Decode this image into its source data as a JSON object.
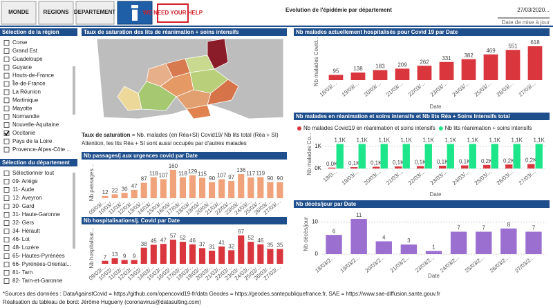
{
  "header": {
    "buttons": [
      "MONDE",
      "REGIONS",
      "DEPARTEMENT",
      "WE NEED YOUR HELP"
    ],
    "title": "Evolution de l'épidémie par département",
    "date": "27/03/2020...",
    "date_caption": "Date de mise à jour"
  },
  "region_selection": {
    "title": "Sélection de la région",
    "selected": "Occitanie",
    "items": [
      "Corse",
      "Grand Est",
      "Guadeloupe",
      "Guyane",
      "Hauts-de-France",
      "Île-de-France",
      "La Réunion",
      "Martinique",
      "Mayotte",
      "Normandie",
      "Nouvelle-Aquitaine",
      "Occitanie",
      "Pays de la Loire",
      "Provence-Alpes-Côte ..."
    ]
  },
  "department_selection": {
    "title": "Sélection du département",
    "selected": "",
    "items": [
      "Sélectionner tout",
      "09- Ariège",
      "11- Aude",
      "12- Aveyron",
      "30- Gard",
      "31- Haute-Garonne",
      "32- Gers",
      "34- Hérault",
      "46- Lot",
      "48- Lozère",
      "65- Hautes-Pyrénées",
      "66- Pyrénées-Oriental...",
      "81- Tarn",
      "82- Tarn-et-Garonne"
    ]
  },
  "map": {
    "title": "Taux de saturation des lits de réanimation + soins intensifs",
    "caption_bold": "Taux de saturation",
    "caption": " = Nb. malades (en Réa+SI) Covid19/ Nb lits total (Réa + SI)",
    "note": "Attention, les lits Réa + SI sont aussi occupés par d'autres malades"
  },
  "chart_data": [
    {
      "type": "bar",
      "title": "Nb malades actuellement hospitalisés pour Covid 19 par Date",
      "y_label": "Nb malades Covid...",
      "x_label": "Date",
      "categories": [
        "18/03/...",
        "19/03/...",
        "20/03/...",
        "21/03/...",
        "22/03/...",
        "23/03/...",
        "24/03/...",
        "25/03/...",
        "26/03/...",
        "27/03/..."
      ],
      "values": [
        95,
        138,
        183,
        209,
        262,
        331,
        382,
        469,
        551,
        618
      ],
      "color": "#d9363e",
      "ylim": [
        0,
        680
      ]
    },
    {
      "type": "bar",
      "title": "Nb malades en réanimation et soins intensifs et Nb lits Réa + Soins Intensifs total",
      "y_label": "Nb malades Co...",
      "x_label": "Date",
      "categories": [
        "18/0...",
        "19/03/...",
        "20/03/...",
        "21/03/...",
        "22/03/...",
        "23/03/...",
        "24/03/...",
        "25/03/...",
        "26/03/...",
        "27/03/..."
      ],
      "series": [
        {
          "name": "Nb malades Covid19 en réanimation et soins intensifs",
          "color": "#d9363e",
          "values": [
            40,
            60,
            80,
            95,
            110,
            125,
            140,
            160,
            180,
            200
          ],
          "value_labels": [
            "0,0K",
            "0,1K",
            "0,1K",
            "0,1K",
            "0,1K",
            "0,1K",
            "0,1K",
            "0,2K",
            "0,2K",
            "0,2K"
          ]
        },
        {
          "name": "Nb lits réanimation + soins intensifs",
          "color": "#1de68a",
          "values": [
            1100,
            1100,
            1100,
            1100,
            1100,
            1100,
            1100,
            1100,
            1100,
            1100
          ],
          "value_labels": [
            "1,1K",
            "1,1K",
            "1,1K",
            "1,1K",
            "1,1K",
            "1,1K",
            "1,1K",
            "1,1K",
            "1,1K",
            "1,1K"
          ]
        }
      ],
      "ylim": [
        0,
        1300
      ],
      "yticks": [
        {
          "value": 0,
          "label": "0K"
        },
        {
          "value": 1000,
          "label": "1K"
        }
      ],
      "grid": true
    },
    {
      "type": "bar",
      "title": "Nb passages/j aux urgences covid par Date",
      "y_label": "Nb passages...",
      "categories": [
        "09/03/...",
        "10/03/...",
        "11/03/...",
        "12/03/...",
        "13/03/...",
        "14/03/...",
        "15/03/...",
        "16/03/...",
        "17/03/...",
        "18/03/...",
        "19/03/...",
        "20/03/...",
        "21/03/...",
        "22/03/...",
        "23/03/...",
        "24/03/...",
        "25/03/...",
        "26/03/...",
        "27/03/..."
      ],
      "values": [
        12,
        22,
        30,
        47,
        87,
        118,
        107,
        160,
        118,
        129,
        115,
        90,
        107,
        97,
        136,
        117,
        119,
        90,
        90
      ],
      "color": "#f0a27a",
      "ylim": [
        0,
        175
      ]
    },
    {
      "type": "bar",
      "title": "Nb hospitalisations/j. Covid par Date",
      "y_label": "Nb hospitalisat...",
      "categories": [
        "09/03/...",
        "10/03/...",
        "11/03/...",
        "12/03/...",
        "13/03/...",
        "14/03/...",
        "15/03/...",
        "16/03/...",
        "17/03/...",
        "18/03/...",
        "19/03/...",
        "20/03/...",
        "21/03/...",
        "22/03/...",
        "23/03/...",
        "24/03/...",
        "25/03/...",
        "26/03/...",
        "27/03/..."
      ],
      "values": [
        7,
        13,
        9,
        9,
        38,
        45,
        47,
        57,
        52,
        46,
        37,
        31,
        41,
        32,
        67,
        52,
        46,
        35,
        35
      ],
      "color": "#d9363e",
      "ylim": [
        0,
        75
      ]
    },
    {
      "type": "bar",
      "title": "Nb décès/jour par Date",
      "y_label": "Nb décès/jour",
      "x_label": "Date",
      "categories": [
        "18/03/2...",
        "19/03/2...",
        "20/03/2...",
        "21/03/2...",
        "23/03/2...",
        "24/03/2...",
        "25/03/2...",
        "26/03/2...",
        "27/03/2..."
      ],
      "values": [
        6,
        11,
        4,
        3,
        1,
        7,
        7,
        8,
        7
      ],
      "color": "#9b6fd0",
      "ylim": [
        0,
        12.5
      ],
      "yticks": [
        0,
        10
      ],
      "grid": true
    }
  ],
  "footer": {
    "sources": "*Sources des données : DataAgainstCovid = https://github.com/opencovid19-fr/data Geodes = https://geodes.santepubliquefrance.fr, SAE = https://www.sae-diffusion.sante.gouv.fr",
    "credit": "Réalisation du tableau de bord: Jérôme Hugueny (coronavirus@datasulting.com)"
  }
}
